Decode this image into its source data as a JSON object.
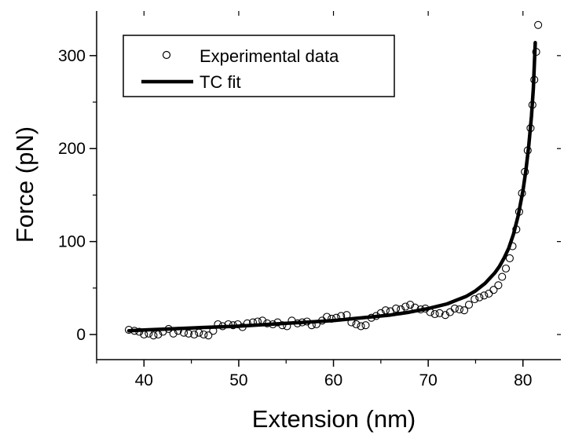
{
  "chart_data": {
    "type": "scatter",
    "title": "",
    "xlabel": "Extension (nm)",
    "ylabel": "Force (pN)",
    "xlim": [
      35,
      84
    ],
    "ylim": [
      -27,
      348
    ],
    "x_ticks": [
      "40",
      "50",
      "60",
      "70",
      "80"
    ],
    "y_ticks": [
      "0",
      "100",
      "200",
      "300"
    ],
    "grid": false,
    "legend_position": "top-left",
    "series": [
      {
        "name": "Experimental data",
        "style": "open-circle-markers",
        "color": "#000000",
        "points": [
          [
            38.4,
            5
          ],
          [
            39.0,
            4
          ],
          [
            39.5,
            3
          ],
          [
            40.0,
            0
          ],
          [
            40.5,
            1
          ],
          [
            41.0,
            -1
          ],
          [
            41.5,
            0
          ],
          [
            42.0,
            3
          ],
          [
            42.6,
            6
          ],
          [
            43.1,
            1
          ],
          [
            43.6,
            4
          ],
          [
            44.2,
            2
          ],
          [
            44.7,
            1
          ],
          [
            45.3,
            0
          ],
          [
            45.8,
            2
          ],
          [
            46.3,
            0
          ],
          [
            46.8,
            -1
          ],
          [
            47.3,
            4
          ],
          [
            47.8,
            11
          ],
          [
            48.3,
            9
          ],
          [
            48.9,
            11
          ],
          [
            49.4,
            10
          ],
          [
            49.9,
            11
          ],
          [
            50.4,
            8
          ],
          [
            50.9,
            12
          ],
          [
            51.5,
            13
          ],
          [
            52.0,
            14
          ],
          [
            52.5,
            15
          ],
          [
            53.0,
            12
          ],
          [
            53.6,
            11
          ],
          [
            54.1,
            13
          ],
          [
            54.6,
            10
          ],
          [
            55.1,
            9
          ],
          [
            55.6,
            15
          ],
          [
            56.2,
            12
          ],
          [
            56.7,
            13
          ],
          [
            57.2,
            14
          ],
          [
            57.7,
            10
          ],
          [
            58.2,
            11
          ],
          [
            58.8,
            15
          ],
          [
            59.3,
            19
          ],
          [
            59.8,
            17
          ],
          [
            60.3,
            18
          ],
          [
            60.8,
            20
          ],
          [
            61.4,
            21
          ],
          [
            61.9,
            13
          ],
          [
            62.4,
            11
          ],
          [
            62.9,
            9
          ],
          [
            63.4,
            10
          ],
          [
            64.0,
            18
          ],
          [
            64.5,
            20
          ],
          [
            65.0,
            23
          ],
          [
            65.5,
            26
          ],
          [
            66.0,
            25
          ],
          [
            66.6,
            28
          ],
          [
            67.1,
            27
          ],
          [
            67.6,
            30
          ],
          [
            68.1,
            32
          ],
          [
            68.6,
            29
          ],
          [
            69.2,
            27
          ],
          [
            69.7,
            28
          ],
          [
            70.2,
            24
          ],
          [
            70.7,
            22
          ],
          [
            71.2,
            23
          ],
          [
            71.8,
            21
          ],
          [
            72.3,
            24
          ],
          [
            72.8,
            28
          ],
          [
            73.3,
            27
          ],
          [
            73.8,
            26
          ],
          [
            74.3,
            32
          ],
          [
            74.9,
            38
          ],
          [
            75.4,
            40
          ],
          [
            75.9,
            42
          ],
          [
            76.4,
            44
          ],
          [
            76.9,
            48
          ],
          [
            77.4,
            53
          ],
          [
            77.8,
            62
          ],
          [
            78.2,
            71
          ],
          [
            78.6,
            82
          ],
          [
            78.9,
            95
          ],
          [
            79.3,
            113
          ],
          [
            79.6,
            132
          ],
          [
            79.9,
            152
          ],
          [
            80.2,
            175
          ],
          [
            80.5,
            198
          ],
          [
            80.8,
            222
          ],
          [
            81.0,
            247
          ],
          [
            81.2,
            274
          ],
          [
            81.4,
            304
          ],
          [
            81.6,
            333
          ]
        ]
      },
      {
        "name": "TC fit",
        "style": "thick-line",
        "color": "#000000",
        "points": [
          [
            38.4,
            4
          ],
          [
            40,
            4.8
          ],
          [
            45,
            7
          ],
          [
            50,
            9
          ],
          [
            55,
            12
          ],
          [
            60,
            15
          ],
          [
            63,
            18
          ],
          [
            66,
            21
          ],
          [
            68,
            24
          ],
          [
            70,
            28
          ],
          [
            72,
            33
          ],
          [
            73,
            37
          ],
          [
            74,
            41
          ],
          [
            75,
            47
          ],
          [
            76,
            55
          ],
          [
            77,
            66
          ],
          [
            77.5,
            73
          ],
          [
            78,
            82
          ],
          [
            78.5,
            93
          ],
          [
            79,
            108
          ],
          [
            79.5,
            128
          ],
          [
            80,
            155
          ],
          [
            80.3,
            176
          ],
          [
            80.6,
            202
          ],
          [
            80.9,
            235
          ],
          [
            81.1,
            265
          ],
          [
            81.3,
            314
          ]
        ]
      }
    ]
  }
}
